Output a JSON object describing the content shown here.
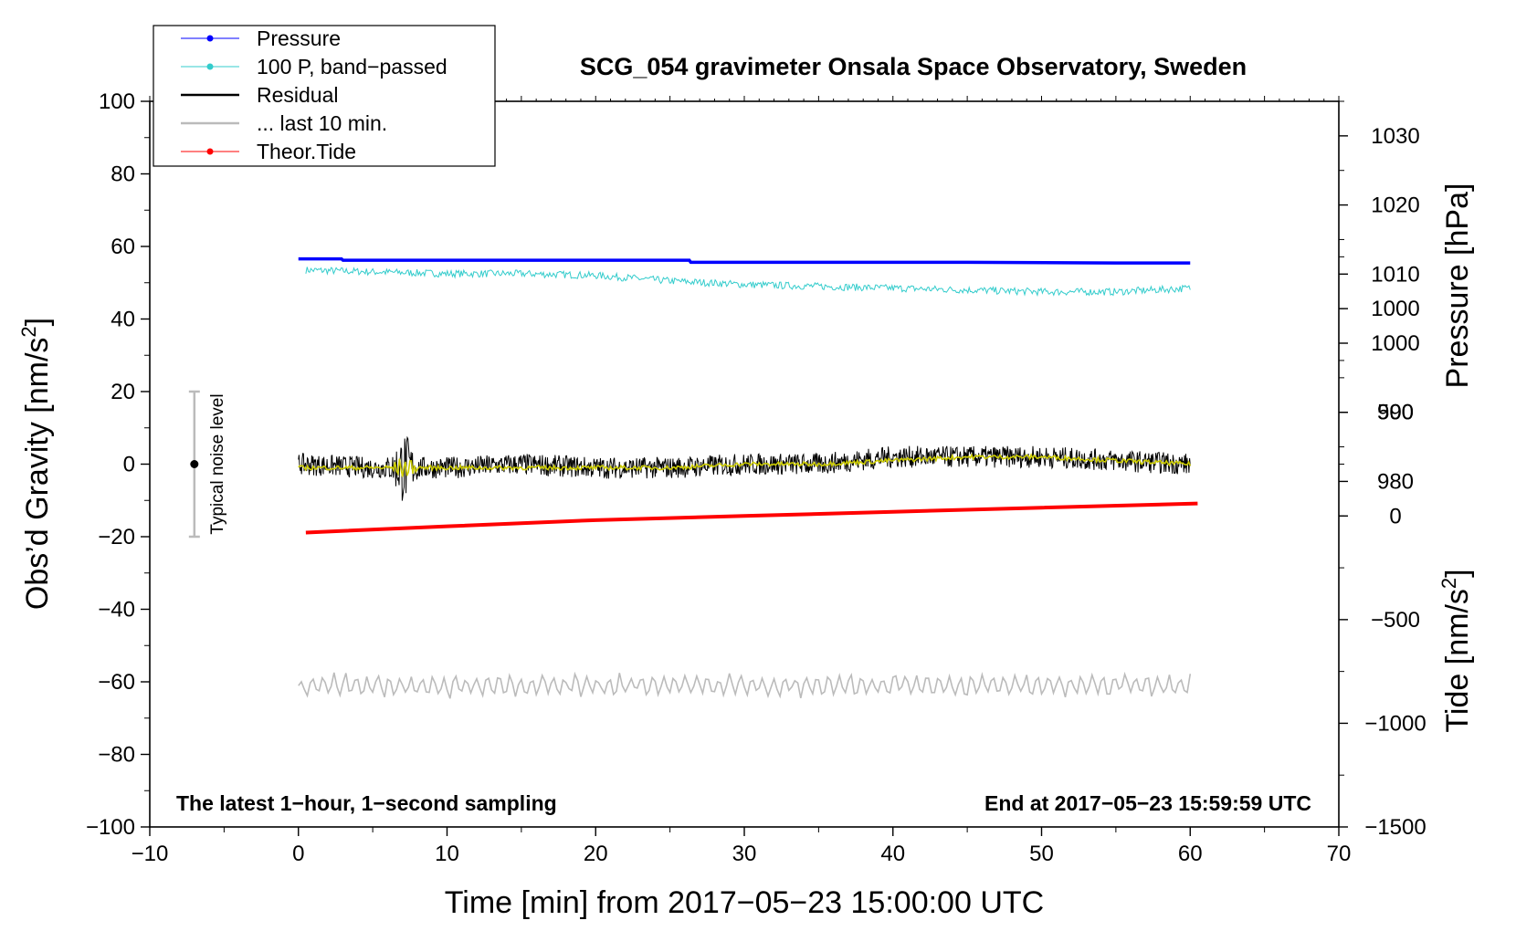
{
  "chart_data": {
    "type": "line",
    "title": "SCG_054 gravimeter Onsala Space Observatory, Sweden",
    "xlabel": "Time [min] from 2017−05−23 15:00:00 UTC",
    "ylabel_left": "Obs’d Gravity [nm/s",
    "ylabel_pressure": "Pressure [hPa]",
    "ylabel_tide": "Tide [nm/s",
    "superscript": "2",
    "close_bracket": "]",
    "xlim": [
      -10,
      70
    ],
    "ylim_left": [
      -100,
      100
    ],
    "ylim_pressure": [
      930,
      1035
    ],
    "ylim_tide": [
      -1500,
      2000
    ],
    "x_ticks": [
      -10,
      0,
      10,
      20,
      30,
      40,
      50,
      60,
      70
    ],
    "x_tick_labels": [
      "−10",
      "0",
      "10",
      "20",
      "30",
      "40",
      "50",
      "60",
      "70"
    ],
    "y_ticks_left": [
      -100,
      -80,
      -60,
      -40,
      -20,
      0,
      20,
      40,
      60,
      80,
      100
    ],
    "y_tick_labels_left": [
      "−100",
      "−80",
      "−60",
      "−40",
      "−20",
      "0",
      "20",
      "40",
      "60",
      "80",
      "100"
    ],
    "y_ticks_pressure": [
      980,
      990,
      1000,
      1010,
      1020,
      1030
    ],
    "y_tick_labels_pressure": [
      "980",
      "990",
      "1000",
      "1010",
      "1020",
      "1030"
    ],
    "y_ticks_tide": [
      -1500,
      -1000,
      -500,
      0,
      500,
      1000
    ],
    "y_tick_labels_tide": [
      "−1500",
      "−1000",
      "−500",
      "0",
      "500",
      "1000"
    ],
    "grid": false,
    "legend_position": "top-left",
    "legend": [
      {
        "label": "Pressure",
        "color": "#0000ff",
        "marker": true
      },
      {
        "label": "100 P, band−passed",
        "color": "#33cccc",
        "marker": true
      },
      {
        "label": "Residual",
        "color": "#000000",
        "marker": false
      },
      {
        "label": "... last 10 min.",
        "color": "#bbbbbb",
        "marker": false
      },
      {
        "label": "Theor.Tide",
        "color": "#ff0000",
        "marker": true
      }
    ],
    "annotations": {
      "noise_label": "Typical noise level",
      "noise_x": -7,
      "noise_range": [
        -20,
        20
      ],
      "bottom_left": "The latest 1−hour, 1−second sampling",
      "bottom_right": "End at 2017−05−23 15:59:59 UTC"
    },
    "series": [
      {
        "name": "Pressure",
        "axis": "pressure",
        "color": "#0000ff",
        "x": [
          0,
          2.9,
          3.0,
          10,
          20,
          26.3,
          26.4,
          35,
          45,
          55,
          60
        ],
        "y": [
          1012.2,
          1012.2,
          1012.0,
          1012.0,
          1012.0,
          1012.0,
          1011.7,
          1011.7,
          1011.7,
          1011.6,
          1011.6
        ]
      },
      {
        "name": "100 P, band−passed",
        "axis": "left",
        "color": "#33cccc",
        "x": [
          0.5,
          5,
          10,
          15,
          20,
          25,
          30,
          35,
          40,
          45,
          50,
          55,
          60
        ],
        "y": [
          53.5,
          53,
          52.5,
          52.5,
          52,
          50.5,
          49.5,
          49,
          48.5,
          48,
          47.5,
          47.5,
          48.5
        ]
      },
      {
        "name": "Residual",
        "axis": "left",
        "color": "#000000",
        "x": [
          0,
          5,
          10,
          15,
          20,
          25,
          30,
          35,
          40,
          45,
          50,
          55,
          60
        ],
        "y": [
          0,
          -1,
          -1,
          0,
          -1,
          -1,
          0,
          0,
          2,
          2,
          2,
          1,
          0
        ]
      },
      {
        "name": "Residual (smoothed)",
        "axis": "left",
        "color": "#cccc00",
        "x": [
          0,
          5,
          10,
          15,
          20,
          25,
          30,
          35,
          40,
          45,
          50,
          55,
          60
        ],
        "y": [
          -1,
          -1,
          -1,
          -1,
          -1,
          -1,
          0,
          0,
          1,
          2,
          2,
          1,
          0
        ]
      },
      {
        "name": "... last 10 min.",
        "axis": "left",
        "color": "#bbbbbb",
        "x": [
          0,
          60
        ],
        "y": [
          -61,
          -61
        ]
      },
      {
        "name": "Theor.Tide",
        "axis": "tide",
        "color": "#ff0000",
        "x": [
          0.5,
          10,
          20,
          30,
          40,
          50,
          60.5
        ],
        "y": [
          -80,
          -50,
          -20,
          0,
          20,
          40,
          60
        ]
      }
    ]
  }
}
